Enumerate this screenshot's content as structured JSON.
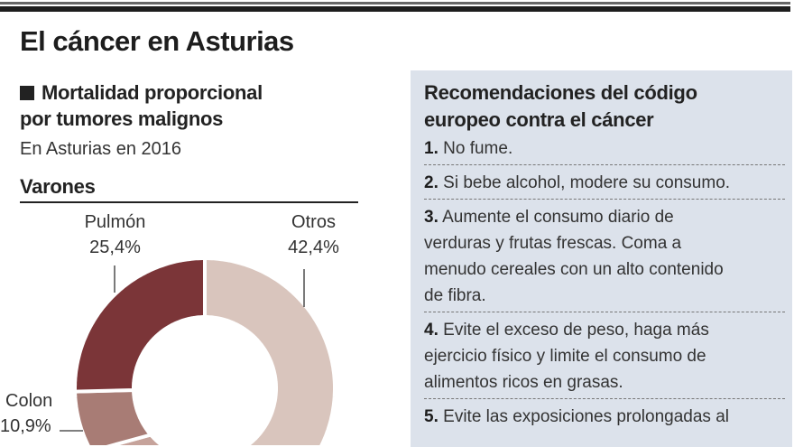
{
  "header": {
    "title": "El cáncer en Asturias"
  },
  "left": {
    "subtitle_line1": "Mortalidad proporcional",
    "subtitle_line2": "por tumores malignos",
    "description": "En Asturias en 2016",
    "section": "Varones"
  },
  "chart_data": {
    "type": "pie",
    "variant": "donut",
    "title": "Varones",
    "slices": [
      {
        "label": "Otros",
        "value": 42.4,
        "display": "42,4%",
        "color": "#d9c5bd"
      },
      {
        "label": "Colon",
        "value": 10.9,
        "display": "10,9%",
        "color": "#a87c75"
      },
      {
        "label": "Pulmón",
        "value": 25.4,
        "display": "25,4%",
        "color": "#7b3538"
      }
    ],
    "unit": "%"
  },
  "panel": {
    "title_line1": "Recomendaciones del código",
    "title_line2": "europeo contra el cáncer",
    "background": "#dce2eb",
    "items": [
      {
        "num": "1.",
        "text": "No fume."
      },
      {
        "num": "2.",
        "text": "Si bebe alcohol, modere su consumo."
      },
      {
        "num": "3.",
        "text": "Aumente el consumo diario de\nverduras y frutas frescas. Coma a\nmenudo cereales con un alto contenido\nde fibra."
      },
      {
        "num": "4.",
        "text": "Evite el exceso de peso, haga más\nejercicio físico y limite el consumo de\nalimentos ricos en grasas."
      },
      {
        "num": "5.",
        "text": "Evite las exposiciones prolongadas al"
      }
    ]
  }
}
